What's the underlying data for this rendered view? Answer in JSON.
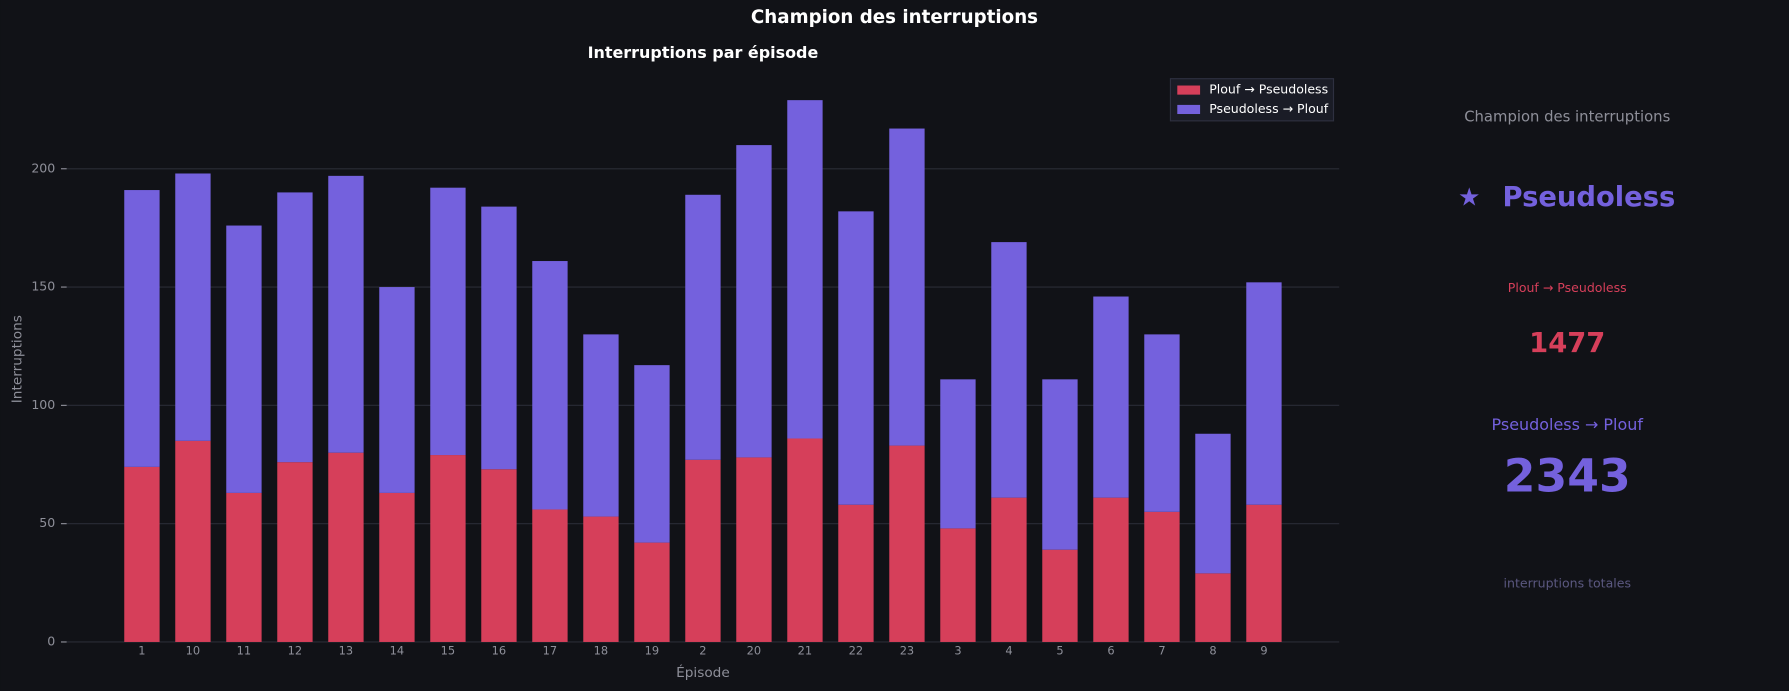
{
  "title": "Champion des interruptions",
  "chart_data": {
    "type": "stacked-bar",
    "title": "Interruptions par épisode",
    "x_label": "Épisode",
    "y_label": "Interruptions",
    "categories": [
      "1",
      "10",
      "11",
      "12",
      "13",
      "14",
      "15",
      "16",
      "17",
      "18",
      "19",
      "2",
      "20",
      "21",
      "22",
      "23",
      "3",
      "4",
      "5",
      "6",
      "7",
      "8",
      "9"
    ],
    "series": [
      {
        "name": "Plouf → Pseudoless",
        "color": "#d63f5a",
        "values": [
          74,
          85,
          63,
          76,
          80,
          63,
          79,
          73,
          56,
          53,
          42,
          77,
          78,
          86,
          58,
          83,
          48,
          61,
          39,
          61,
          55,
          29,
          58
        ]
      },
      {
        "name": "Pseudoless → Plouf",
        "color": "#7461dd",
        "values": [
          117,
          113,
          113,
          114,
          117,
          87,
          113,
          111,
          105,
          77,
          75,
          112,
          132,
          143,
          124,
          134,
          63,
          108,
          72,
          85,
          75,
          59,
          94
        ]
      }
    ],
    "ylim": [
      0,
      240
    ],
    "yticks": [
      0,
      50,
      100,
      150,
      200
    ],
    "grid": true,
    "legend": "upper-right"
  },
  "panel": {
    "title": "Champion des interruptions",
    "star": "★",
    "winner": "Pseudoless",
    "stat_a_label": "Plouf → Pseudoless",
    "stat_a_value": "1477",
    "stat_b_label": "Pseudoless → Plouf",
    "stat_b_value": "2343",
    "footer": "interruptions totales"
  }
}
